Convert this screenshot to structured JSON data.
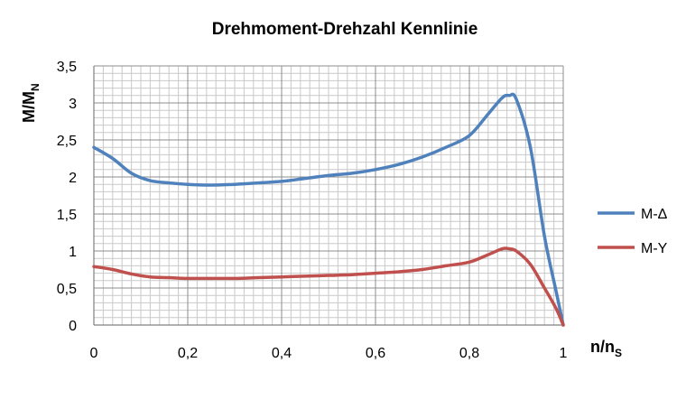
{
  "chart_data": {
    "type": "line",
    "title": "Drehmoment-Drehzahl Kennlinie",
    "xlabel": {
      "main": "n/n",
      "sub": "S"
    },
    "ylabel": {
      "main": "M/M",
      "sub": "N"
    },
    "xlim": [
      0,
      1
    ],
    "ylim": [
      0,
      3.5
    ],
    "x_major": 0.2,
    "x_minor": 0.02,
    "y_major": 0.5,
    "y_minor": 0.1,
    "grid": true,
    "legend_position": "right",
    "x_ticks": [
      "0",
      "0,2",
      "0,4",
      "0,6",
      "0,8",
      "1"
    ],
    "y_ticks": [
      "0",
      "0,5",
      "1",
      "1,5",
      "2",
      "2,5",
      "3",
      "3,5"
    ],
    "series": [
      {
        "name": "M-Δ",
        "color": "#4F81BD",
        "points": [
          [
            0,
            2.4
          ],
          [
            0.04,
            2.25
          ],
          [
            0.08,
            2.05
          ],
          [
            0.12,
            1.95
          ],
          [
            0.16,
            1.92
          ],
          [
            0.2,
            1.9
          ],
          [
            0.25,
            1.89
          ],
          [
            0.3,
            1.9
          ],
          [
            0.35,
            1.92
          ],
          [
            0.4,
            1.94
          ],
          [
            0.45,
            1.98
          ],
          [
            0.5,
            2.02
          ],
          [
            0.55,
            2.05
          ],
          [
            0.6,
            2.1
          ],
          [
            0.65,
            2.17
          ],
          [
            0.7,
            2.27
          ],
          [
            0.75,
            2.4
          ],
          [
            0.8,
            2.56
          ],
          [
            0.84,
            2.85
          ],
          [
            0.87,
            3.07
          ],
          [
            0.885,
            3.1
          ],
          [
            0.9,
            3.05
          ],
          [
            0.93,
            2.4
          ],
          [
            0.96,
            1.2
          ],
          [
            0.985,
            0.45
          ],
          [
            1.0,
            0.0
          ]
        ]
      },
      {
        "name": "M-Y",
        "color": "#C0504D",
        "points": [
          [
            0,
            0.79
          ],
          [
            0.04,
            0.75
          ],
          [
            0.08,
            0.69
          ],
          [
            0.12,
            0.65
          ],
          [
            0.16,
            0.64
          ],
          [
            0.2,
            0.63
          ],
          [
            0.25,
            0.63
          ],
          [
            0.3,
            0.63
          ],
          [
            0.35,
            0.64
          ],
          [
            0.4,
            0.65
          ],
          [
            0.45,
            0.66
          ],
          [
            0.5,
            0.67
          ],
          [
            0.55,
            0.68
          ],
          [
            0.6,
            0.7
          ],
          [
            0.65,
            0.72
          ],
          [
            0.7,
            0.75
          ],
          [
            0.75,
            0.8
          ],
          [
            0.8,
            0.85
          ],
          [
            0.84,
            0.95
          ],
          [
            0.87,
            1.03
          ],
          [
            0.885,
            1.03
          ],
          [
            0.9,
            1.0
          ],
          [
            0.93,
            0.82
          ],
          [
            0.96,
            0.5
          ],
          [
            0.985,
            0.22
          ],
          [
            1.0,
            0.0
          ]
        ]
      }
    ]
  }
}
